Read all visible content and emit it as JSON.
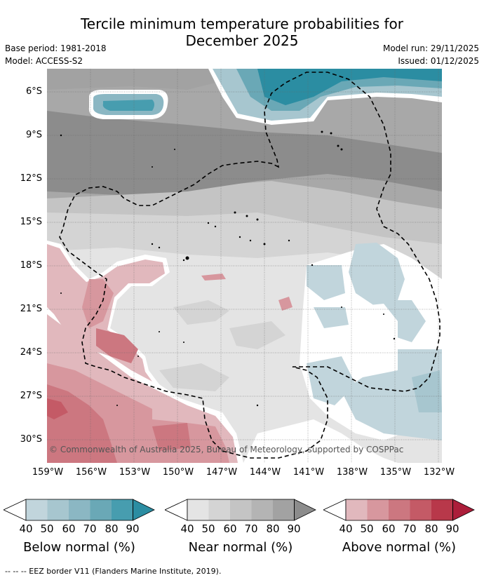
{
  "title_line1": "Tercile minimum temperature probabilities for",
  "title_line2": "December 2025",
  "base_period": "Base period: 1981-2018",
  "model": "Model: ACCESS-S2",
  "model_run": "Model run: 29/11/2025",
  "issued": "Issued: 01/12/2025",
  "copyright": "© Commonwealth of Australia 2025, Bureau of Meteorology, supported by COSPPac",
  "lat_labels": [
    "6°S",
    "9°S",
    "12°S",
    "15°S",
    "18°S",
    "21°S",
    "24°S",
    "27°S",
    "30°S"
  ],
  "lon_labels": [
    "159°W",
    "156°W",
    "153°W",
    "150°W",
    "147°W",
    "144°W",
    "141°W",
    "138°W",
    "135°W",
    "132°W"
  ],
  "legends": [
    {
      "title": "Below normal (%)",
      "ticks": [
        "40",
        "50",
        "60",
        "70",
        "80",
        "90"
      ],
      "colors": [
        "#ffffff",
        "#c1d5dc",
        "#a7c6cf",
        "#8bb7c3",
        "#6aa8b6",
        "#479daf",
        "#2b8da2"
      ]
    },
    {
      "title": "Near normal (%)",
      "ticks": [
        "40",
        "50",
        "60",
        "70",
        "80",
        "90"
      ],
      "colors": [
        "#ffffff",
        "#e4e4e4",
        "#d4d4d4",
        "#c4c4c4",
        "#b4b4b4",
        "#a2a2a2",
        "#8c8c8c"
      ]
    },
    {
      "title": "Above normal (%)",
      "ticks": [
        "40",
        "50",
        "60",
        "70",
        "80",
        "90"
      ],
      "colors": [
        "#ffffff",
        "#e1b8bd",
        "#d7979e",
        "#cc7780",
        "#c45a66",
        "#b8384a",
        "#ac1e3a"
      ]
    }
  ],
  "footer": "--  --  -- EEZ border V11 (Flanders Marine Institute, 2019)."
}
